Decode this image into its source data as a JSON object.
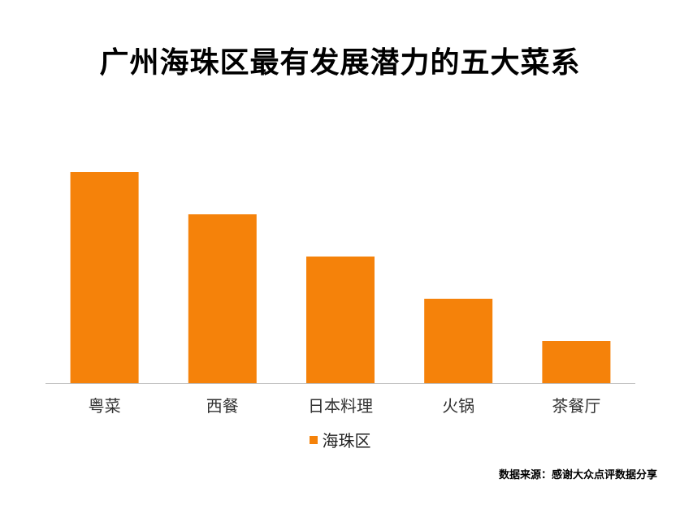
{
  "title": "广州海珠区最有发展潜力的五大菜系",
  "source_note": "数据来源：感谢大众点评数据分享",
  "colors": {
    "bar": "#F5820A",
    "axis": "#bfbfbf",
    "tick_text": "#333333"
  },
  "legend": {
    "label": "海珠区"
  },
  "chart_data": {
    "type": "bar",
    "title": "广州海珠区最有发展潜力的五大菜系",
    "xlabel": "",
    "ylabel": "",
    "categories": [
      "粤菜",
      "西餐",
      "日本料理",
      "火锅",
      "茶餐厅"
    ],
    "series": [
      {
        "name": "海珠区",
        "values": [
          5,
          4,
          3,
          2,
          1
        ]
      }
    ],
    "ylim": [
      0,
      5
    ],
    "grid": false,
    "legend_position": "bottom"
  }
}
